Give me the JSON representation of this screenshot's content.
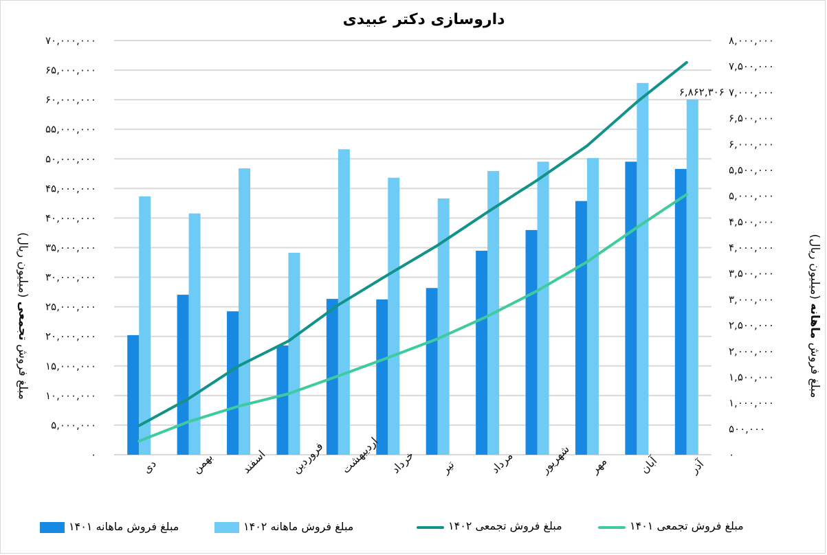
{
  "title": "داروسازی دکتر عبیدی",
  "axes": {
    "left_title": "مبلغ فروش تجمعی (میلیون ریال)",
    "left_title_parts": {
      "pre": "مبلغ فروش ",
      "bold": "تجمعی",
      "post": " (میلیون ریال)"
    },
    "right_title": "مبلغ فروش ماهانه (میلیون ریال)",
    "right_title_parts": {
      "pre": "مبلغ فروش ",
      "bold": "ماهانه",
      "post": " (میلیون ریال)"
    },
    "left_ticks": [
      "۰",
      "۵,۰۰۰,۰۰۰",
      "۱۰,۰۰۰,۰۰۰",
      "۱۵,۰۰۰,۰۰۰",
      "۲۰,۰۰۰,۰۰۰",
      "۲۵,۰۰۰,۰۰۰",
      "۳۰,۰۰۰,۰۰۰",
      "۳۵,۰۰۰,۰۰۰",
      "۴۰,۰۰۰,۰۰۰",
      "۴۵,۰۰۰,۰۰۰",
      "۵۰,۰۰۰,۰۰۰",
      "۵۵,۰۰۰,۰۰۰",
      "۶۰,۰۰۰,۰۰۰",
      "۶۵,۰۰۰,۰۰۰",
      "۷۰,۰۰۰,۰۰۰"
    ],
    "right_ticks": [
      "۰",
      "۵۰۰,۰۰۰",
      "۱,۰۰۰,۰۰۰",
      "۱,۵۰۰,۰۰۰",
      "۲,۰۰۰,۰۰۰",
      "۲,۵۰۰,۰۰۰",
      "۳,۰۰۰,۰۰۰",
      "۳,۵۰۰,۰۰۰",
      "۴,۰۰۰,۰۰۰",
      "۴,۵۰۰,۰۰۰",
      "۵,۰۰۰,۰۰۰",
      "۵,۵۰۰,۰۰۰",
      "۶,۰۰۰,۰۰۰",
      "۶,۵۰۰,۰۰۰",
      "۷,۰۰۰,۰۰۰",
      "۷,۵۰۰,۰۰۰",
      "۸,۰۰۰,۰۰۰"
    ]
  },
  "annotation": {
    "text": "۶,۸۶۲,۳۰۶",
    "series": "monthly_1402",
    "month": "آذر"
  },
  "legend": [
    {
      "label": "مبلغ فروش ماهانه ۱۴۰۱",
      "color": "#1789e2",
      "kind": "bar"
    },
    {
      "label": "مبلغ فروش ماهانه ۱۴۰۲",
      "color": "#6ecbf5",
      "kind": "bar"
    },
    {
      "label": "مبلغ فروش تجمعی ۱۴۰۲",
      "color": "#13928a",
      "kind": "line"
    },
    {
      "label": "مبلغ فروش تجمعی ۱۴۰۱",
      "color": "#3fcba0",
      "kind": "line"
    }
  ],
  "colors": {
    "bar_1401": "#1789e2",
    "bar_1402": "#6ecbf5",
    "line_1402": "#13928a",
    "line_1401": "#3fcba0",
    "grid": "#d9d9d9"
  },
  "chart_data": {
    "type": "bar",
    "title": "داروسازی دکتر عبیدی",
    "categories": [
      "دی",
      "بهمن",
      "اسفند",
      "فروردین",
      "اردیبهشت",
      "خرداد",
      "تیر",
      "مرداد",
      "شهریور",
      "مهر",
      "آبان",
      "آذر"
    ],
    "series": [
      {
        "name": "مبلغ فروش ماهانه ۱۴۰۱",
        "type": "bar",
        "axis": "right",
        "values": [
          2310000,
          3090000,
          2770000,
          2110000,
          3010000,
          3000000,
          3220000,
          3940000,
          4340000,
          4900000,
          5660000,
          5520000
        ]
      },
      {
        "name": "مبلغ فروش ماهانه ۱۴۰۲",
        "type": "bar",
        "axis": "right",
        "values": [
          4990000,
          4660000,
          5530000,
          3900000,
          5900000,
          5350000,
          4950000,
          5480000,
          5660000,
          5730000,
          7180000,
          6862306
        ]
      },
      {
        "name": "مبلغ فروش تجمعی ۱۴۰۲",
        "type": "line",
        "axis": "left",
        "values": [
          4900000,
          9500000,
          15000000,
          19200000,
          25300000,
          30400000,
          35400000,
          41000000,
          46400000,
          52200000,
          59600000,
          66300000
        ]
      },
      {
        "name": "مبلغ فروش تجمعی ۱۴۰۱",
        "type": "line",
        "axis": "left",
        "values": [
          2300000,
          5600000,
          8200000,
          10300000,
          13300000,
          16400000,
          19600000,
          23400000,
          27700000,
          32600000,
          38400000,
          44000000
        ]
      }
    ],
    "xlabel": "",
    "ylabel": "مبلغ فروش تجمعی (میلیون ریال)",
    "y2label": "مبلغ فروش ماهانه (میلیون ریال)",
    "ylim": [
      0,
      70000000
    ],
    "y2lim": [
      0,
      8000000
    ],
    "grid": true,
    "legend_position": "bottom",
    "data_labels": [
      {
        "series": "مبلغ فروش ماهانه ۱۴۰۲",
        "category": "آذر",
        "text": "۶,۸۶۲,۳۰۶"
      }
    ]
  }
}
